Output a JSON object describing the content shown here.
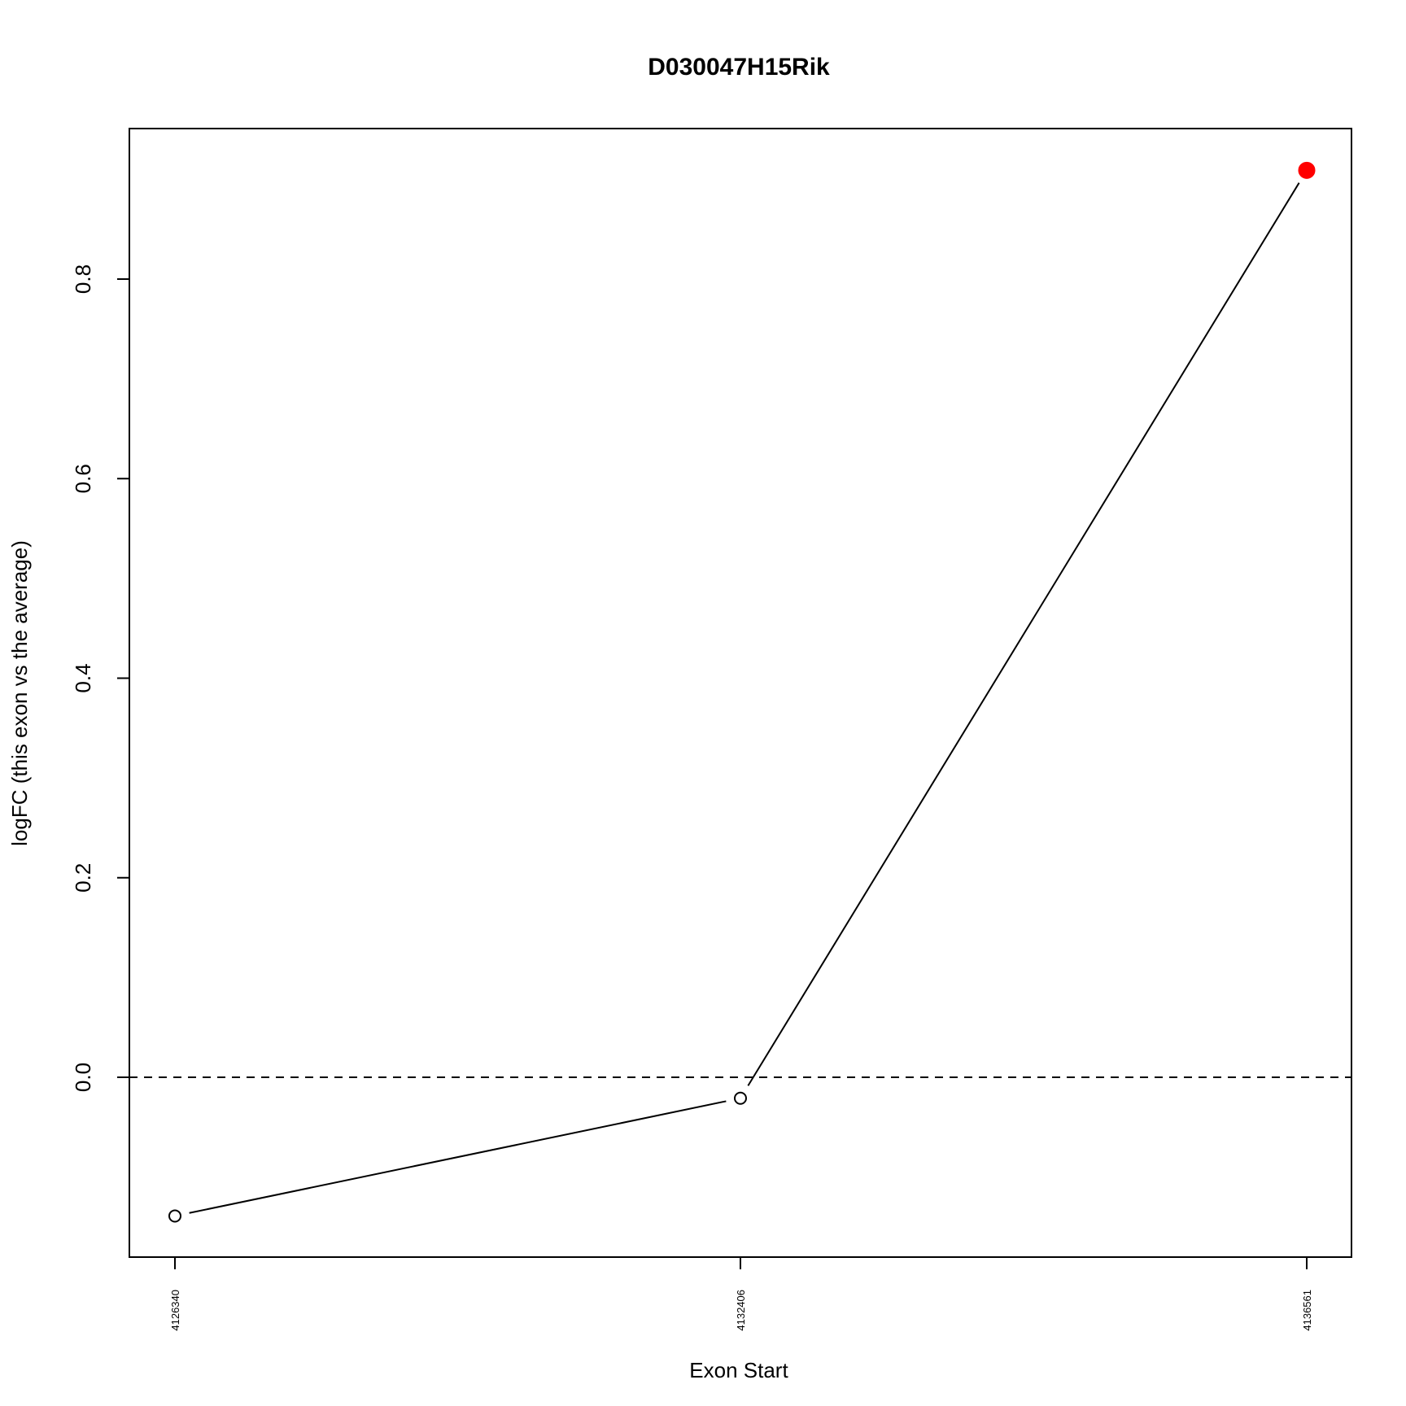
{
  "chart_data": {
    "type": "line",
    "title": "D030047H15Rik",
    "xlabel": "Exon Start",
    "ylabel": "logFC (this exon vs the average)",
    "categories": [
      "4126340",
      "4132406",
      "4136561"
    ],
    "values": [
      -0.139,
      -0.021,
      0.909
    ],
    "highlighted_index": 2,
    "highlight_color": "#ff0000",
    "line_color": "#000000",
    "yticks": [
      "0.0",
      "0.2",
      "0.4",
      "0.6",
      "0.8"
    ],
    "ytick_values": [
      0.0,
      0.2,
      0.4,
      0.6,
      0.8
    ],
    "ylim": [
      -0.18,
      0.95
    ],
    "reference_line": 0.0,
    "grid": false,
    "legend": "none"
  }
}
